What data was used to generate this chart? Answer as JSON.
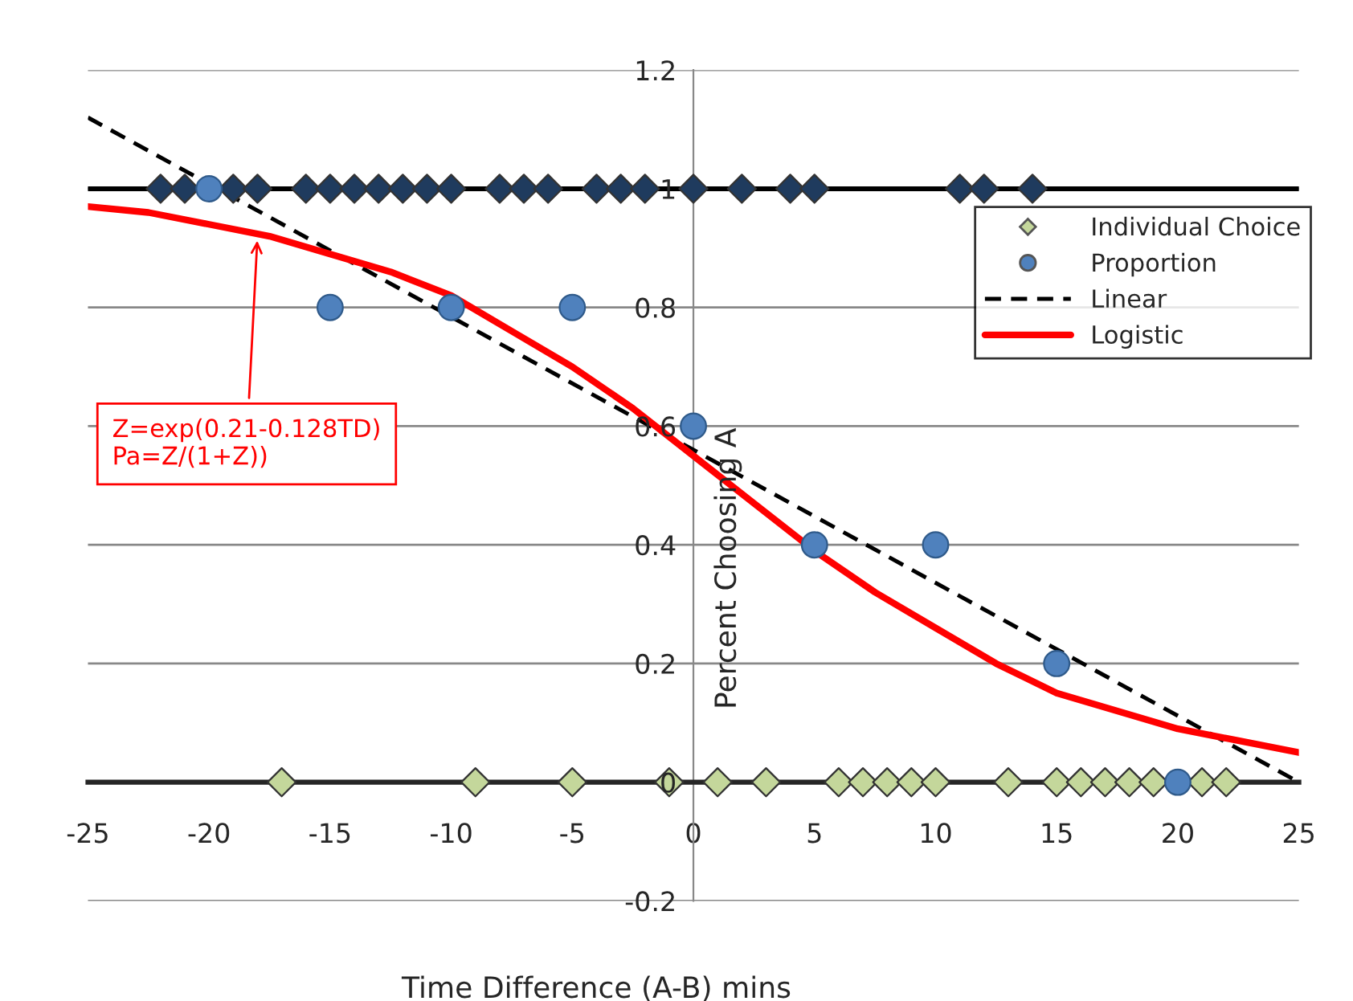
{
  "chart_data": {
    "type": "scatter",
    "xlabel": "Time Difference (A-B) mins",
    "ylabel": "Percent Choosing A",
    "xlim": [
      -25,
      25
    ],
    "ylim": [
      -0.2,
      1.2
    ],
    "xticks": [
      -25,
      -20,
      -15,
      -10,
      -5,
      0,
      5,
      10,
      15,
      20,
      25
    ],
    "yticks": [
      -0.2,
      0,
      0.2,
      0.4,
      0.6,
      0.8,
      1,
      1.2
    ],
    "grid": "y",
    "legend": "top right",
    "ref_lines": [
      {
        "axis": "y",
        "value": 1,
        "color": "#000000"
      }
    ],
    "series": [
      {
        "marker": "diamond",
        "color": "#1f3b5e",
        "x": [
          -22,
          -21,
          -19,
          -18,
          -16,
          -15,
          -14,
          -13,
          -12,
          -11,
          -10,
          -8,
          -7,
          -6,
          -4,
          -3,
          -2,
          0,
          2,
          4,
          5,
          11,
          12,
          14
        ],
        "values": [
          1,
          1,
          1,
          1,
          1,
          1,
          1,
          1,
          1,
          1,
          1,
          1,
          1,
          1,
          1,
          1,
          1,
          1,
          1,
          1,
          1,
          1,
          1,
          1
        ]
      },
      {
        "name": "Individual Choice",
        "marker": "diamond",
        "color": "#c4d79b",
        "x": [
          -17,
          -9,
          -5,
          -1,
          1,
          3,
          6,
          7,
          8,
          9,
          10,
          13,
          15,
          16,
          17,
          18,
          19,
          21,
          22
        ],
        "values": [
          0,
          0,
          0,
          0,
          0,
          0,
          0,
          0,
          0,
          0,
          0,
          0,
          0,
          0,
          0,
          0,
          0,
          0,
          0
        ]
      },
      {
        "name": "Proportion",
        "marker": "circle",
        "color": "#4f81bd",
        "x": [
          -20,
          -15,
          -10,
          -5,
          0,
          5,
          10,
          15,
          20
        ],
        "values": [
          1,
          0.8,
          0.8,
          0.8,
          0.6,
          0.4,
          0.4,
          0.2,
          0
        ]
      },
      {
        "type": "line",
        "name": "Linear",
        "line_style": "dashed",
        "marker": "none",
        "color": "#000000",
        "x": [
          -25,
          25
        ],
        "values": [
          1.12,
          0
        ]
      },
      {
        "type": "line",
        "name": "Logistic",
        "line_style": "solid",
        "marker": "none",
        "color": "#ff0000",
        "x": [
          -25,
          -22.5,
          -20,
          -17.5,
          -15,
          -12.5,
          -10,
          -7.5,
          -5,
          -2.5,
          0,
          2.5,
          5,
          7.5,
          10,
          12.5,
          15,
          17.5,
          20,
          22.5,
          25
        ],
        "values": [
          0.97,
          0.96,
          0.94,
          0.92,
          0.89,
          0.86,
          0.82,
          0.76,
          0.7,
          0.63,
          0.55,
          0.47,
          0.39,
          0.32,
          0.26,
          0.2,
          0.15,
          0.12,
          0.09,
          0.07,
          0.05
        ]
      }
    ],
    "annotations": [
      {
        "text": "Z=exp(0.21-0.128TD)\nPa=Z/(1+Z))",
        "x": -18,
        "y": 0.92
      }
    ]
  }
}
